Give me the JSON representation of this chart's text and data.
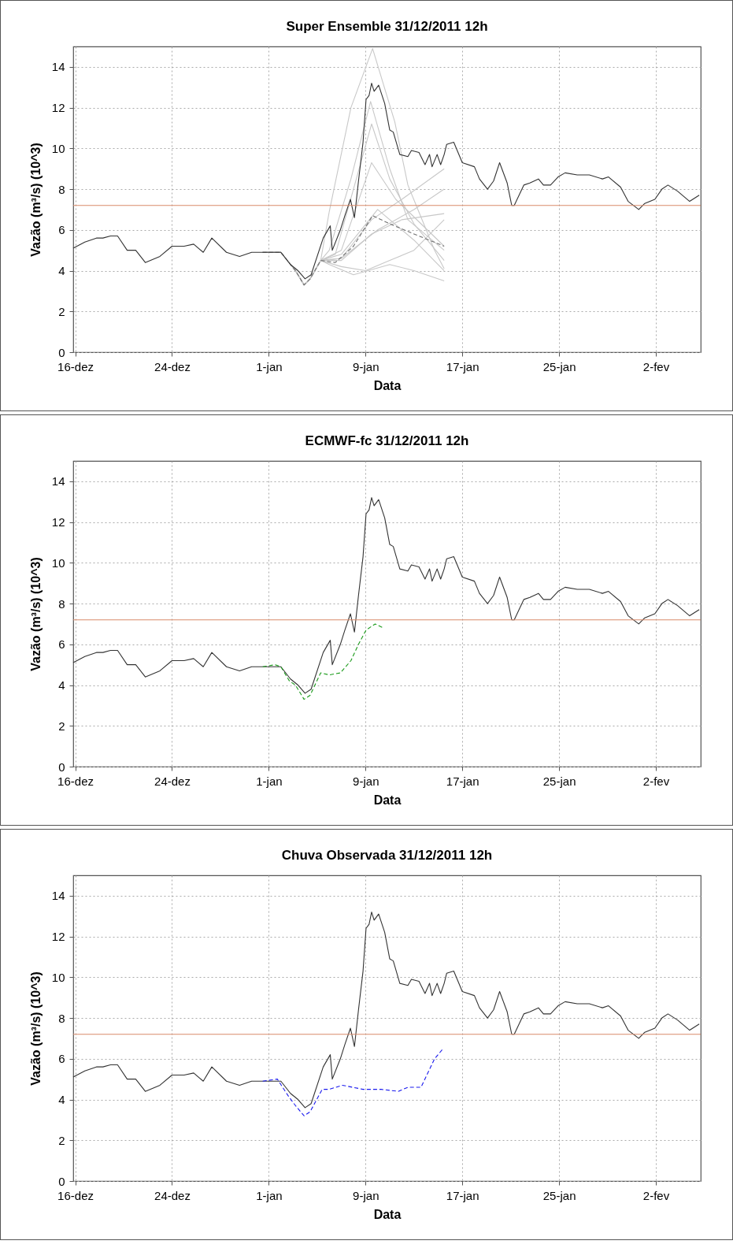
{
  "chart_data": [
    {
      "type": "line",
      "title": "Super Ensemble 31/12/2011 12h",
      "xlabel": "Data",
      "ylabel": "Vazão (m³/s) (10^3)",
      "xlim": [
        "2011-12-15T20:00",
        "2012-02-05T17:00"
      ],
      "ylim": [
        0,
        15
      ],
      "xticks": [
        {
          "value": "2011-12-16",
          "label": "16-dez"
        },
        {
          "value": "2011-12-24",
          "label": "24-dez"
        },
        {
          "value": "2012-01-01",
          "label": "1-jan"
        },
        {
          "value": "2012-01-09",
          "label": "9-jan"
        },
        {
          "value": "2012-01-17",
          "label": "17-jan"
        },
        {
          "value": "2012-01-25",
          "label": "25-jan"
        },
        {
          "value": "2012-02-02",
          "label": "2-fev"
        }
      ],
      "yticks": [
        0,
        2,
        4,
        6,
        8,
        10,
        12,
        14
      ],
      "grid": true,
      "ref_lines": [
        {
          "axis": "y",
          "value": 7.2,
          "color": "#d98a6a"
        }
      ],
      "series": [
        {
          "color": "#c8c8c8",
          "x": [
            "2011-12-31T12:00",
            "2012-01-02T00:00",
            "2012-01-03T05:00",
            "2012-01-03T22:00",
            "2012-01-04T10:00",
            "2012-01-05T07:00",
            "2012-01-06T00:00",
            "2012-01-07T19:00",
            "2012-01-09T14:00",
            "2012-01-11T10:00",
            "2012-01-12T12:00",
            "2012-01-14T17:00",
            "2012-01-15T12:00"
          ],
          "values": [
            4.9,
            4.9,
            4.0,
            3.3,
            3.6,
            4.5,
            6.9,
            12.0,
            14.9,
            11.3,
            8.2,
            5.0,
            4.1
          ]
        },
        {
          "color": "#c8c8c8",
          "x": [
            "2011-12-31T12:00",
            "2012-01-02T00:00",
            "2012-01-03T05:00",
            "2012-01-03T22:00",
            "2012-01-04T10:00",
            "2012-01-05T07:00",
            "2012-01-06T00:00",
            "2012-01-07T19:00",
            "2012-01-09T10:00",
            "2012-01-11T00:00",
            "2012-01-12T12:00",
            "2012-01-15T12:00"
          ],
          "values": [
            4.9,
            4.9,
            4.0,
            3.3,
            3.6,
            4.5,
            5.0,
            8.5,
            12.3,
            9.0,
            6.5,
            5.0
          ]
        },
        {
          "color": "#c8c8c8",
          "x": [
            "2011-12-31T12:00",
            "2012-01-02T00:00",
            "2012-01-03T05:00",
            "2012-01-03T22:00",
            "2012-01-04T10:00",
            "2012-01-05T07:00",
            "2012-01-06T12:00",
            "2012-01-08T00:00",
            "2012-01-09T12:00",
            "2012-01-11T00:00",
            "2012-01-13T00:00",
            "2012-01-15T12:00"
          ],
          "values": [
            4.9,
            4.9,
            4.0,
            3.3,
            3.6,
            4.5,
            4.8,
            8.0,
            11.2,
            8.5,
            6.3,
            4.5
          ]
        },
        {
          "color": "#c8c8c8",
          "x": [
            "2011-12-31T12:00",
            "2012-01-02T00:00",
            "2012-01-03T05:00",
            "2012-01-03T22:00",
            "2012-01-04T10:00",
            "2012-01-05T07:00",
            "2012-01-07T00:00",
            "2012-01-09T12:00",
            "2012-01-11T12:00",
            "2012-01-15T12:00"
          ],
          "values": [
            4.9,
            4.9,
            4.0,
            3.3,
            3.6,
            4.5,
            5.0,
            9.3,
            7.5,
            5.2
          ]
        },
        {
          "color": "#c8c8c8",
          "x": [
            "2011-12-31T12:00",
            "2012-01-02T00:00",
            "2012-01-03T05:00",
            "2012-01-03T22:00",
            "2012-01-04T10:00",
            "2012-01-05T07:00",
            "2012-01-07T00:00",
            "2012-01-09T12:00",
            "2012-01-12T00:00",
            "2012-01-15T12:00"
          ],
          "values": [
            4.9,
            4.9,
            4.0,
            3.3,
            3.6,
            4.5,
            4.6,
            6.5,
            7.5,
            9.0
          ]
        },
        {
          "color": "#c8c8c8",
          "x": [
            "2011-12-31T12:00",
            "2012-01-02T00:00",
            "2012-01-03T05:00",
            "2012-01-03T22:00",
            "2012-01-04T10:00",
            "2012-01-05T07:00",
            "2012-01-07T00:00",
            "2012-01-10T00:00",
            "2012-01-13T00:00",
            "2012-01-15T12:00"
          ],
          "values": [
            4.9,
            4.9,
            4.0,
            3.3,
            3.6,
            4.5,
            4.6,
            6.0,
            7.0,
            8.0
          ]
        },
        {
          "color": "#c8c8c8",
          "x": [
            "2011-12-31T12:00",
            "2012-01-02T00:00",
            "2012-01-03T05:00",
            "2012-01-03T22:00",
            "2012-01-04T10:00",
            "2012-01-05T07:00",
            "2012-01-07T00:00",
            "2012-01-09T00:00",
            "2012-01-11T00:00",
            "2012-01-13T00:00",
            "2012-01-15T12:00"
          ],
          "values": [
            4.9,
            4.9,
            4.0,
            3.3,
            3.6,
            4.5,
            4.2,
            4.0,
            4.5,
            5.0,
            6.5
          ]
        },
        {
          "color": "#c8c8c8",
          "x": [
            "2011-12-31T12:00",
            "2012-01-02T00:00",
            "2012-01-03T05:00",
            "2012-01-03T22:00",
            "2012-01-04T10:00",
            "2012-01-05T07:00",
            "2012-01-06T00:00",
            "2012-01-08T00:00",
            "2012-01-11T00:00",
            "2012-01-13T00:00",
            "2012-01-15T12:00"
          ],
          "values": [
            4.9,
            4.9,
            4.0,
            3.3,
            3.6,
            4.5,
            4.3,
            3.8,
            4.3,
            4.0,
            3.5
          ]
        },
        {
          "color": "#c8c8c8",
          "x": [
            "2011-12-31T12:00",
            "2012-01-02T00:00",
            "2012-01-03T05:00",
            "2012-01-03T22:00",
            "2012-01-04T10:00",
            "2012-01-05T07:00",
            "2012-01-07T00:00",
            "2012-01-10T00:00",
            "2012-01-13T00:00",
            "2012-01-15T12:00"
          ],
          "values": [
            4.9,
            4.9,
            4.0,
            3.3,
            3.6,
            4.5,
            4.8,
            7.0,
            5.5,
            4.0
          ]
        },
        {
          "color": "#c8c8c8",
          "x": [
            "2011-12-31T12:00",
            "2012-01-02T00:00",
            "2012-01-03T05:00",
            "2012-01-03T22:00",
            "2012-01-04T10:00",
            "2012-01-05T07:00",
            "2012-01-07T00:00",
            "2012-01-09T12:00",
            "2012-01-12T00:00",
            "2012-01-15T12:00"
          ],
          "values": [
            4.9,
            4.9,
            4.0,
            3.3,
            3.6,
            4.5,
            4.5,
            5.8,
            6.5,
            6.8
          ]
        },
        {
          "color": "#707070",
          "line_style": "dashed",
          "x": [
            "2011-12-31T12:00",
            "2012-01-02T00:00",
            "2012-01-03T05:00",
            "2012-01-03T22:00",
            "2012-01-04T10:00",
            "2012-01-05T07:00",
            "2012-01-06T12:00",
            "2012-01-08T00:00",
            "2012-01-09T14:00",
            "2012-01-11T00:00",
            "2012-01-13T00:00",
            "2012-01-15T12:00"
          ],
          "values": [
            4.9,
            4.9,
            4.0,
            3.3,
            3.6,
            4.5,
            4.4,
            5.2,
            6.7,
            6.3,
            5.8,
            5.2
          ]
        },
        {
          "color": "#333333",
          "x": [
            "2011-12-15T20:00",
            "2011-12-16T19:00",
            "2011-12-17T18:00",
            "2011-12-18T07:00",
            "2011-12-18T22:00",
            "2011-12-19T12:00",
            "2011-12-20T07:00",
            "2011-12-21T00:00",
            "2011-12-21T19:00",
            "2011-12-23T00:00",
            "2011-12-24T00:00",
            "2011-12-25T00:00",
            "2011-12-25T19:00",
            "2011-12-26T14:00",
            "2011-12-27T07:00",
            "2011-12-28T12:00",
            "2011-12-29T14:00",
            "2011-12-30T14:00",
            "2012-01-01T00:00",
            "2012-01-02T00:00",
            "2012-01-02T19:00",
            "2012-01-03T10:00",
            "2012-01-04T00:00",
            "2012-01-04T12:00",
            "2012-01-05T12:00",
            "2012-01-06T02:00",
            "2012-01-06T06:00",
            "2012-01-06T22:00",
            "2012-01-07T07:00",
            "2012-01-07T18:00",
            "2012-01-08T02:00",
            "2012-01-08T10:00",
            "2012-01-08T19:00",
            "2012-01-09T01:00",
            "2012-01-09T07:00",
            "2012-01-09T12:00",
            "2012-01-09T17:00",
            "2012-01-10T02:00",
            "2012-01-10T14:00",
            "2012-01-11T00:00",
            "2012-01-11T07:00",
            "2012-01-11T20:00",
            "2012-01-12T12:00",
            "2012-01-12T19:00",
            "2012-01-13T10:00",
            "2012-01-13T22:00",
            "2012-01-14T07:00",
            "2012-01-14T12:00",
            "2012-01-14T22:00",
            "2012-01-15T05:00",
            "2012-01-15T12:00",
            "2012-01-15T17:00",
            "2012-01-16T07:00",
            "2012-01-17T00:00",
            "2012-01-18T00:00",
            "2012-01-18T10:00",
            "2012-01-19T02:00",
            "2012-01-19T14:00",
            "2012-01-20T02:00",
            "2012-01-20T17:00",
            "2012-01-21T02:00",
            "2012-01-21T07:00",
            "2012-01-22T02:00",
            "2012-01-22T14:00",
            "2012-01-23T07:00",
            "2012-01-23T17:00",
            "2012-01-24T07:00",
            "2012-01-24T22:00",
            "2012-01-25T12:00",
            "2012-01-26T12:00",
            "2012-01-27T12:00",
            "2012-01-28T14:00",
            "2012-01-29T02:00",
            "2012-01-30T02:00",
            "2012-01-30T17:00",
            "2012-01-31T14:00",
            "2012-02-01T02:00",
            "2012-02-01T22:00",
            "2012-02-02T12:00",
            "2012-02-03T00:00",
            "2012-02-03T19:00",
            "2012-02-04T19:00",
            "2012-02-05T14:00"
          ],
          "values": [
            5.1,
            5.4,
            5.6,
            5.6,
            5.7,
            5.7,
            5.0,
            5.0,
            4.4,
            4.7,
            5.2,
            5.2,
            5.3,
            4.9,
            5.6,
            4.9,
            4.7,
            4.9,
            4.9,
            4.9,
            4.3,
            4.0,
            3.6,
            3.8,
            5.6,
            6.2,
            5.0,
            6.0,
            6.7,
            7.5,
            6.6,
            8.4,
            10.3,
            12.4,
            12.6,
            13.2,
            12.8,
            13.1,
            12.2,
            10.9,
            10.8,
            9.7,
            9.6,
            9.9,
            9.8,
            9.2,
            9.7,
            9.1,
            9.7,
            9.2,
            9.7,
            10.2,
            10.3,
            9.3,
            9.1,
            8.5,
            8.0,
            8.4,
            9.3,
            8.3,
            7.2,
            7.2,
            8.2,
            8.3,
            8.5,
            8.2,
            8.2,
            8.6,
            8.8,
            8.7,
            8.7,
            8.5,
            8.6,
            8.1,
            7.4,
            7.0,
            7.3,
            7.5,
            8.0,
            8.2,
            7.9,
            7.4,
            7.7
          ]
        }
      ]
    },
    {
      "type": "line",
      "title": "ECMWF-fc 31/12/2011 12h",
      "xlabel": "Data",
      "ylabel": "Vazão (m³/s) (10^3)",
      "xlim": [
        "2011-12-15T20:00",
        "2012-02-05T17:00"
      ],
      "ylim": [
        0,
        15
      ],
      "xticks": [
        {
          "value": "2011-12-16",
          "label": "16-dez"
        },
        {
          "value": "2011-12-24",
          "label": "24-dez"
        },
        {
          "value": "2012-01-01",
          "label": "1-jan"
        },
        {
          "value": "2012-01-09",
          "label": "9-jan"
        },
        {
          "value": "2012-01-17",
          "label": "17-jan"
        },
        {
          "value": "2012-01-25",
          "label": "25-jan"
        },
        {
          "value": "2012-02-02",
          "label": "2-fev"
        }
      ],
      "yticks": [
        0,
        2,
        4,
        6,
        8,
        10,
        12,
        14
      ],
      "grid": true,
      "ref_lines": [
        {
          "axis": "y",
          "value": 7.2,
          "color": "#d98a6a"
        }
      ],
      "series": [
        {
          "color": "#333333",
          "x": [
            "2011-12-15T20:00",
            "2011-12-16T19:00",
            "2011-12-17T18:00",
            "2011-12-18T07:00",
            "2011-12-18T22:00",
            "2011-12-19T12:00",
            "2011-12-20T07:00",
            "2011-12-21T00:00",
            "2011-12-21T19:00",
            "2011-12-23T00:00",
            "2011-12-24T00:00",
            "2011-12-25T00:00",
            "2011-12-25T19:00",
            "2011-12-26T14:00",
            "2011-12-27T07:00",
            "2011-12-28T12:00",
            "2011-12-29T14:00",
            "2011-12-30T14:00",
            "2012-01-01T00:00",
            "2012-01-02T00:00",
            "2012-01-02T19:00",
            "2012-01-03T10:00",
            "2012-01-04T00:00",
            "2012-01-04T12:00",
            "2012-01-05T12:00",
            "2012-01-06T02:00",
            "2012-01-06T06:00",
            "2012-01-06T22:00",
            "2012-01-07T07:00",
            "2012-01-07T18:00",
            "2012-01-08T02:00",
            "2012-01-08T10:00",
            "2012-01-08T19:00",
            "2012-01-09T01:00",
            "2012-01-09T07:00",
            "2012-01-09T12:00",
            "2012-01-09T17:00",
            "2012-01-10T02:00",
            "2012-01-10T14:00",
            "2012-01-11T00:00",
            "2012-01-11T07:00",
            "2012-01-11T20:00",
            "2012-01-12T12:00",
            "2012-01-12T19:00",
            "2012-01-13T10:00",
            "2012-01-13T22:00",
            "2012-01-14T07:00",
            "2012-01-14T12:00",
            "2012-01-14T22:00",
            "2012-01-15T05:00",
            "2012-01-15T12:00",
            "2012-01-15T17:00",
            "2012-01-16T07:00",
            "2012-01-17T00:00",
            "2012-01-18T00:00",
            "2012-01-18T10:00",
            "2012-01-19T02:00",
            "2012-01-19T14:00",
            "2012-01-20T02:00",
            "2012-01-20T17:00",
            "2012-01-21T02:00",
            "2012-01-21T07:00",
            "2012-01-22T02:00",
            "2012-01-22T14:00",
            "2012-01-23T07:00",
            "2012-01-23T17:00",
            "2012-01-24T07:00",
            "2012-01-24T22:00",
            "2012-01-25T12:00",
            "2012-01-26T12:00",
            "2012-01-27T12:00",
            "2012-01-28T14:00",
            "2012-01-29T02:00",
            "2012-01-30T02:00",
            "2012-01-30T17:00",
            "2012-01-31T14:00",
            "2012-02-01T02:00",
            "2012-02-01T22:00",
            "2012-02-02T12:00",
            "2012-02-03T00:00",
            "2012-02-03T19:00",
            "2012-02-04T19:00",
            "2012-02-05T14:00"
          ],
          "values": [
            5.1,
            5.4,
            5.6,
            5.6,
            5.7,
            5.7,
            5.0,
            5.0,
            4.4,
            4.7,
            5.2,
            5.2,
            5.3,
            4.9,
            5.6,
            4.9,
            4.7,
            4.9,
            4.9,
            4.9,
            4.3,
            4.0,
            3.6,
            3.8,
            5.6,
            6.2,
            5.0,
            6.0,
            6.7,
            7.5,
            6.6,
            8.4,
            10.3,
            12.4,
            12.6,
            13.2,
            12.8,
            13.1,
            12.2,
            10.9,
            10.8,
            9.7,
            9.6,
            9.9,
            9.8,
            9.2,
            9.7,
            9.1,
            9.7,
            9.2,
            9.7,
            10.2,
            10.3,
            9.3,
            9.1,
            8.5,
            8.0,
            8.4,
            9.3,
            8.3,
            7.2,
            7.2,
            8.2,
            8.3,
            8.5,
            8.2,
            8.2,
            8.6,
            8.8,
            8.7,
            8.7,
            8.5,
            8.6,
            8.1,
            7.4,
            7.0,
            7.3,
            7.5,
            8.0,
            8.2,
            7.9,
            7.4,
            7.7
          ]
        },
        {
          "color": "#1a9a1a",
          "line_style": "dashed",
          "x": [
            "2011-12-31T12:00",
            "2012-01-01T12:00",
            "2012-01-02T00:00",
            "2012-01-02T17:00",
            "2012-01-03T05:00",
            "2012-01-03T22:00",
            "2012-01-04T10:00",
            "2012-01-05T07:00",
            "2012-01-06T00:00",
            "2012-01-06T22:00",
            "2012-01-07T19:00",
            "2012-01-08T10:00",
            "2012-01-09T01:00",
            "2012-01-09T19:00",
            "2012-01-10T12:00"
          ],
          "values": [
            4.9,
            5.0,
            4.9,
            4.2,
            4.0,
            3.3,
            3.5,
            4.6,
            4.5,
            4.6,
            5.2,
            6.0,
            6.7,
            7.0,
            6.8
          ]
        }
      ]
    },
    {
      "type": "line",
      "title": "Chuva Observada 31/12/2011 12h",
      "xlabel": "Data",
      "ylabel": "Vazão (m³/s) (10^3)",
      "xlim": [
        "2011-12-15T20:00",
        "2012-02-05T17:00"
      ],
      "ylim": [
        0,
        15
      ],
      "xticks": [
        {
          "value": "2011-12-16",
          "label": "16-dez"
        },
        {
          "value": "2011-12-24",
          "label": "24-dez"
        },
        {
          "value": "2012-01-01",
          "label": "1-jan"
        },
        {
          "value": "2012-01-09",
          "label": "9-jan"
        },
        {
          "value": "2012-01-17",
          "label": "17-jan"
        },
        {
          "value": "2012-01-25",
          "label": "25-jan"
        },
        {
          "value": "2012-02-02",
          "label": "2-fev"
        }
      ],
      "yticks": [
        0,
        2,
        4,
        6,
        8,
        10,
        12,
        14
      ],
      "grid": true,
      "ref_lines": [
        {
          "axis": "y",
          "value": 7.2,
          "color": "#d98a6a"
        }
      ],
      "series": [
        {
          "color": "#333333",
          "x": [
            "2011-12-15T20:00",
            "2011-12-16T19:00",
            "2011-12-17T18:00",
            "2011-12-18T07:00",
            "2011-12-18T22:00",
            "2011-12-19T12:00",
            "2011-12-20T07:00",
            "2011-12-21T00:00",
            "2011-12-21T19:00",
            "2011-12-23T00:00",
            "2011-12-24T00:00",
            "2011-12-25T00:00",
            "2011-12-25T19:00",
            "2011-12-26T14:00",
            "2011-12-27T07:00",
            "2011-12-28T12:00",
            "2011-12-29T14:00",
            "2011-12-30T14:00",
            "2012-01-01T00:00",
            "2012-01-02T00:00",
            "2012-01-02T19:00",
            "2012-01-03T10:00",
            "2012-01-04T00:00",
            "2012-01-04T12:00",
            "2012-01-05T12:00",
            "2012-01-06T02:00",
            "2012-01-06T06:00",
            "2012-01-06T22:00",
            "2012-01-07T07:00",
            "2012-01-07T18:00",
            "2012-01-08T02:00",
            "2012-01-08T10:00",
            "2012-01-08T19:00",
            "2012-01-09T01:00",
            "2012-01-09T07:00",
            "2012-01-09T12:00",
            "2012-01-09T17:00",
            "2012-01-10T02:00",
            "2012-01-10T14:00",
            "2012-01-11T00:00",
            "2012-01-11T07:00",
            "2012-01-11T20:00",
            "2012-01-12T12:00",
            "2012-01-12T19:00",
            "2012-01-13T10:00",
            "2012-01-13T22:00",
            "2012-01-14T07:00",
            "2012-01-14T12:00",
            "2012-01-14T22:00",
            "2012-01-15T05:00",
            "2012-01-15T12:00",
            "2012-01-15T17:00",
            "2012-01-16T07:00",
            "2012-01-17T00:00",
            "2012-01-18T00:00",
            "2012-01-18T10:00",
            "2012-01-19T02:00",
            "2012-01-19T14:00",
            "2012-01-20T02:00",
            "2012-01-20T17:00",
            "2012-01-21T02:00",
            "2012-01-21T07:00",
            "2012-01-22T02:00",
            "2012-01-22T14:00",
            "2012-01-23T07:00",
            "2012-01-23T17:00",
            "2012-01-24T07:00",
            "2012-01-24T22:00",
            "2012-01-25T12:00",
            "2012-01-26T12:00",
            "2012-01-27T12:00",
            "2012-01-28T14:00",
            "2012-01-29T02:00",
            "2012-01-30T02:00",
            "2012-01-30T17:00",
            "2012-01-31T14:00",
            "2012-02-01T02:00",
            "2012-02-01T22:00",
            "2012-02-02T12:00",
            "2012-02-03T00:00",
            "2012-02-03T19:00",
            "2012-02-04T19:00",
            "2012-02-05T14:00"
          ],
          "values": [
            5.1,
            5.4,
            5.6,
            5.6,
            5.7,
            5.7,
            5.0,
            5.0,
            4.4,
            4.7,
            5.2,
            5.2,
            5.3,
            4.9,
            5.6,
            4.9,
            4.7,
            4.9,
            4.9,
            4.9,
            4.3,
            4.0,
            3.6,
            3.8,
            5.6,
            6.2,
            5.0,
            6.0,
            6.7,
            7.5,
            6.6,
            8.4,
            10.3,
            12.4,
            12.6,
            13.2,
            12.8,
            13.1,
            12.2,
            10.9,
            10.8,
            9.7,
            9.6,
            9.9,
            9.8,
            9.2,
            9.7,
            9.1,
            9.7,
            9.2,
            9.7,
            10.2,
            10.3,
            9.3,
            9.1,
            8.5,
            8.0,
            8.4,
            9.3,
            8.3,
            7.2,
            7.2,
            8.2,
            8.3,
            8.5,
            8.2,
            8.2,
            8.6,
            8.8,
            8.7,
            8.7,
            8.5,
            8.6,
            8.1,
            7.4,
            7.0,
            7.3,
            7.5,
            8.0,
            8.2,
            7.9,
            7.4,
            7.7
          ]
        },
        {
          "color": "#1a1aee",
          "line_style": "dashed",
          "x": [
            "2011-12-31T12:00",
            "2012-01-01T17:00",
            "2012-01-02T14:00",
            "2012-01-03T05:00",
            "2012-01-03T22:00",
            "2012-01-04T10:00",
            "2012-01-05T10:00",
            "2012-01-06T00:00",
            "2012-01-07T02:00",
            "2012-01-08T19:00",
            "2012-01-10T07:00",
            "2012-01-11T17:00",
            "2012-01-12T12:00",
            "2012-01-13T14:00",
            "2012-01-14T17:00",
            "2012-01-15T10:00"
          ],
          "values": [
            4.9,
            5.0,
            4.2,
            3.7,
            3.2,
            3.4,
            4.5,
            4.5,
            4.7,
            4.5,
            4.5,
            4.4,
            4.6,
            4.6,
            6.0,
            6.5
          ]
        }
      ]
    }
  ]
}
